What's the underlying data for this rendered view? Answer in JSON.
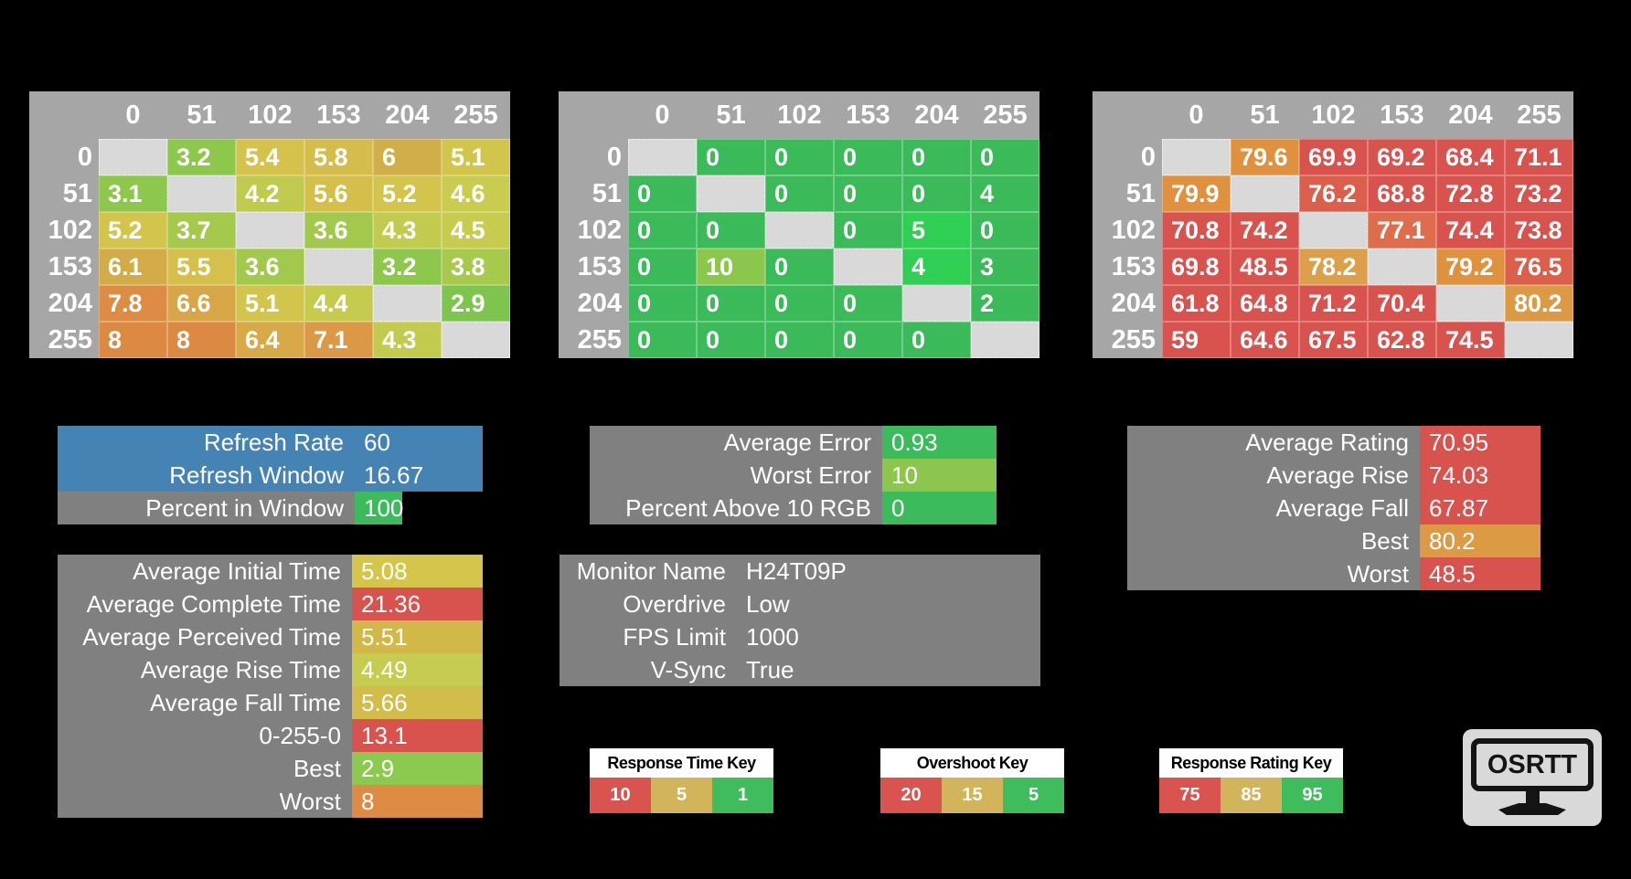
{
  "colors": {
    "background": "#000000",
    "table_chrome": "#a6a6a6",
    "diagonal": "#d9d9d9",
    "blue": "#4583b5",
    "gray_box": "#808080",
    "green": "#3cbb5c",
    "bright_green": "#2fcf53",
    "yellow_green": "#8cc64e",
    "yellow": "#d5c54b",
    "orange": "#dc9a44",
    "red": "#d9534e"
  },
  "tables": [
    {
      "id": "response-times",
      "col_headers": [
        "0",
        "51",
        "102",
        "153",
        "204",
        "255"
      ],
      "row_headers": [
        "0",
        "51",
        "102",
        "153",
        "204",
        "255"
      ],
      "cells": [
        [
          null,
          {
            "v": "3.2",
            "c": "#8dc74b"
          },
          {
            "v": "5.4",
            "c": "#d4c24b"
          },
          {
            "v": "5.8",
            "c": "#d4bd4a"
          },
          {
            "v": "6",
            "c": "#d2ae48"
          },
          {
            "v": "5.1",
            "c": "#d2c54c"
          }
        ],
        [
          {
            "v": "3.1",
            "c": "#8dc74b"
          },
          null,
          {
            "v": "4.2",
            "c": "#c0cb4d"
          },
          {
            "v": "5.6",
            "c": "#d4bf4a"
          },
          {
            "v": "5.2",
            "c": "#d3c44b"
          },
          {
            "v": "4.6",
            "c": "#c9cc4e"
          }
        ],
        [
          {
            "v": "5.2",
            "c": "#d3c44b"
          },
          {
            "v": "3.7",
            "c": "#a5c94c"
          },
          null,
          {
            "v": "3.6",
            "c": "#a2c94c"
          },
          {
            "v": "4.3",
            "c": "#c2cb4d"
          },
          {
            "v": "4.5",
            "c": "#c7cc4e"
          }
        ],
        [
          {
            "v": "6.1",
            "c": "#d3ac48"
          },
          {
            "v": "5.5",
            "c": "#d4c04a"
          },
          {
            "v": "3.6",
            "c": "#a2c94c"
          },
          null,
          {
            "v": "3.2",
            "c": "#8dc74b"
          },
          {
            "v": "3.8",
            "c": "#a8ca4c"
          }
        ],
        [
          {
            "v": "7.8",
            "c": "#dc8d43"
          },
          {
            "v": "6.6",
            "c": "#d9a647"
          },
          {
            "v": "5.1",
            "c": "#d2c54c"
          },
          {
            "v": "4.4",
            "c": "#c4cb4d"
          },
          null,
          {
            "v": "2.9",
            "c": "#7ec54e"
          }
        ],
        [
          {
            "v": "8",
            "c": "#dc8942"
          },
          {
            "v": "8",
            "c": "#dc8942"
          },
          {
            "v": "6.4",
            "c": "#d8aa47"
          },
          {
            "v": "7.1",
            "c": "#db9845"
          },
          {
            "v": "4.3",
            "c": "#c2cb4d"
          },
          null
        ]
      ]
    },
    {
      "id": "overshoot",
      "col_headers": [
        "0",
        "51",
        "102",
        "153",
        "204",
        "255"
      ],
      "row_headers": [
        "0",
        "51",
        "102",
        "153",
        "204",
        "255"
      ],
      "cells": [
        [
          null,
          {
            "v": "0",
            "c": "#3bba5a"
          },
          {
            "v": "0",
            "c": "#3bba5a"
          },
          {
            "v": "0",
            "c": "#3bba5a"
          },
          {
            "v": "0",
            "c": "#3bba5a"
          },
          {
            "v": "0",
            "c": "#3bba5a"
          }
        ],
        [
          {
            "v": "0",
            "c": "#3bba5a"
          },
          null,
          {
            "v": "0",
            "c": "#3bba5a"
          },
          {
            "v": "0",
            "c": "#3bba5a"
          },
          {
            "v": "0",
            "c": "#3bba5a"
          },
          {
            "v": "4",
            "c": "#3bba5a"
          }
        ],
        [
          {
            "v": "0",
            "c": "#3bba5a"
          },
          {
            "v": "0",
            "c": "#3bba5a"
          },
          null,
          {
            "v": "0",
            "c": "#3bba5a"
          },
          {
            "v": "5",
            "c": "#2fcf53"
          },
          {
            "v": "0",
            "c": "#3bba5a"
          }
        ],
        [
          {
            "v": "0",
            "c": "#3bba5a"
          },
          {
            "v": "10",
            "c": "#8cc74d"
          },
          {
            "v": "0",
            "c": "#3bba5a"
          },
          null,
          {
            "v": "4",
            "c": "#2fcf53"
          },
          {
            "v": "3",
            "c": "#3bba5a"
          }
        ],
        [
          {
            "v": "0",
            "c": "#3bba5a"
          },
          {
            "v": "0",
            "c": "#3bba5a"
          },
          {
            "v": "0",
            "c": "#3bba5a"
          },
          {
            "v": "0",
            "c": "#3bba5a"
          },
          null,
          {
            "v": "2",
            "c": "#3bba5a"
          }
        ],
        [
          {
            "v": "0",
            "c": "#3bba5a"
          },
          {
            "v": "0",
            "c": "#3bba5a"
          },
          {
            "v": "0",
            "c": "#3bba5a"
          },
          {
            "v": "0",
            "c": "#3bba5a"
          },
          {
            "v": "0",
            "c": "#3bba5a"
          },
          null
        ]
      ]
    },
    {
      "id": "response-rating",
      "col_headers": [
        "0",
        "51",
        "102",
        "153",
        "204",
        "255"
      ],
      "row_headers": [
        "0",
        "51",
        "102",
        "153",
        "204",
        "255"
      ],
      "cells": [
        [
          null,
          {
            "v": "79.6",
            "c": "#e0913e"
          },
          {
            "v": "69.9",
            "c": "#d9534e"
          },
          {
            "v": "69.2",
            "c": "#d9534e"
          },
          {
            "v": "68.4",
            "c": "#d9534e"
          },
          {
            "v": "71.1",
            "c": "#d9534e"
          }
        ],
        [
          {
            "v": "79.9",
            "c": "#e0913e"
          },
          null,
          {
            "v": "76.2",
            "c": "#db5f4b"
          },
          {
            "v": "68.8",
            "c": "#d9534e"
          },
          {
            "v": "72.8",
            "c": "#d9534e"
          },
          {
            "v": "73.2",
            "c": "#d9534e"
          }
        ],
        [
          {
            "v": "70.8",
            "c": "#d9534e"
          },
          {
            "v": "74.2",
            "c": "#d9534e"
          },
          null,
          {
            "v": "77.1",
            "c": "#df6c4a"
          },
          {
            "v": "74.4",
            "c": "#d9534e"
          },
          {
            "v": "73.8",
            "c": "#d9534e"
          }
        ],
        [
          {
            "v": "69.8",
            "c": "#d9534e"
          },
          {
            "v": "48.5",
            "c": "#d9534e"
          },
          {
            "v": "78.2",
            "c": "#dda04a"
          },
          null,
          {
            "v": "79.2",
            "c": "#e0913e"
          },
          {
            "v": "76.5",
            "c": "#db5f4b"
          }
        ],
        [
          {
            "v": "61.8",
            "c": "#d9534e"
          },
          {
            "v": "64.8",
            "c": "#d9534e"
          },
          {
            "v": "71.2",
            "c": "#d9534e"
          },
          {
            "v": "70.4",
            "c": "#d9534e"
          },
          null,
          {
            "v": "80.2",
            "c": "#dc9a44"
          }
        ],
        [
          {
            "v": "59",
            "c": "#d9534e"
          },
          {
            "v": "64.6",
            "c": "#d9534e"
          },
          {
            "v": "67.5",
            "c": "#d9534e"
          },
          {
            "v": "62.8",
            "c": "#d9534e"
          },
          {
            "v": "74.5",
            "c": "#d9534e"
          },
          null
        ]
      ]
    }
  ],
  "boxes": {
    "refresh": {
      "rows": [
        {
          "label": "Refresh Rate",
          "value": "60",
          "label_bg": "#4583b5",
          "value_bg": "#4583b5"
        },
        {
          "label": "Refresh Window",
          "value": "16.67",
          "label_bg": "#4583b5",
          "value_bg": "#4583b5"
        },
        {
          "label": "Percent in Window",
          "value": "100",
          "label_bg": "#808080",
          "value_bg": "#3cbb5c",
          "value_w": 52
        }
      ]
    },
    "error": {
      "rows": [
        {
          "label": "Average Error",
          "value": "0.93",
          "label_bg": "#808080",
          "value_bg": "#3cbb5c"
        },
        {
          "label": "Worst Error",
          "value": "10",
          "label_bg": "#808080",
          "value_bg": "#8cc64e"
        },
        {
          "label": "Percent Above 10 RGB",
          "value": "0",
          "label_bg": "#808080",
          "value_bg": "#3cbb5c"
        }
      ]
    },
    "rating": {
      "rows": [
        {
          "label": "Average Rating",
          "value": "70.95",
          "label_bg": "#808080",
          "value_bg": "#d9534e"
        },
        {
          "label": "Average Rise",
          "value": "74.03",
          "label_bg": "#808080",
          "value_bg": "#d9534e"
        },
        {
          "label": "Average Fall",
          "value": "67.87",
          "label_bg": "#808080",
          "value_bg": "#d9534e"
        },
        {
          "label": "Best",
          "value": "80.2",
          "label_bg": "#808080",
          "value_bg": "#dc9a44"
        },
        {
          "label": "Worst",
          "value": "48.5",
          "label_bg": "#808080",
          "value_bg": "#d9534e"
        }
      ]
    },
    "times": {
      "rows": [
        {
          "label": "Average Initial Time",
          "value": "5.08",
          "label_bg": "#808080",
          "value_bg": "#d5c54b"
        },
        {
          "label": "Average Complete Time",
          "value": "21.36",
          "label_bg": "#808080",
          "value_bg": "#d9534e"
        },
        {
          "label": "Average Perceived Time",
          "value": "5.51",
          "label_bg": "#808080",
          "value_bg": "#d2b848"
        },
        {
          "label": "Average Rise Time",
          "value": "4.49",
          "label_bg": "#808080",
          "value_bg": "#c6cc4f"
        },
        {
          "label": "Average Fall Time",
          "value": "5.66",
          "label_bg": "#808080",
          "value_bg": "#d2bc4a"
        },
        {
          "label": "0-255-0",
          "value": "13.1",
          "label_bg": "#808080",
          "value_bg": "#d9534e"
        },
        {
          "label": "Best",
          "value": "2.9",
          "label_bg": "#808080",
          "value_bg": "#8cc94f"
        },
        {
          "label": "Worst",
          "value": "8",
          "label_bg": "#808080",
          "value_bg": "#dd8b43"
        }
      ]
    },
    "monitor": {
      "rows": [
        {
          "label": "Monitor Name",
          "value": "H24T09P",
          "label_bg": "#808080",
          "value_bg": "#808080"
        },
        {
          "label": "Overdrive",
          "value": "Low",
          "label_bg": "#808080",
          "value_bg": "#808080"
        },
        {
          "label": "FPS Limit",
          "value": "1000",
          "label_bg": "#808080",
          "value_bg": "#808080"
        },
        {
          "label": "V-Sync",
          "value": "True",
          "label_bg": "#808080",
          "value_bg": "#808080"
        }
      ]
    }
  },
  "keys": [
    {
      "id": "response-time-key",
      "title": "Response Time Key",
      "cells": [
        {
          "v": "10",
          "c": "#d9534f"
        },
        {
          "v": "5",
          "c": "#d2b55b"
        },
        {
          "v": "1",
          "c": "#3fbc5c"
        }
      ]
    },
    {
      "id": "overshoot-key",
      "title": "Overshoot Key",
      "cells": [
        {
          "v": "20",
          "c": "#d9534f"
        },
        {
          "v": "15",
          "c": "#d2b55b"
        },
        {
          "v": "5",
          "c": "#3fbc5c"
        }
      ]
    },
    {
      "id": "response-rating-key",
      "title": "Response Rating Key",
      "cells": [
        {
          "v": "75",
          "c": "#d9534f"
        },
        {
          "v": "85",
          "c": "#d2b55b"
        },
        {
          "v": "95",
          "c": "#3fbc5c"
        }
      ]
    }
  ],
  "logo": {
    "text": "OSRTT"
  }
}
